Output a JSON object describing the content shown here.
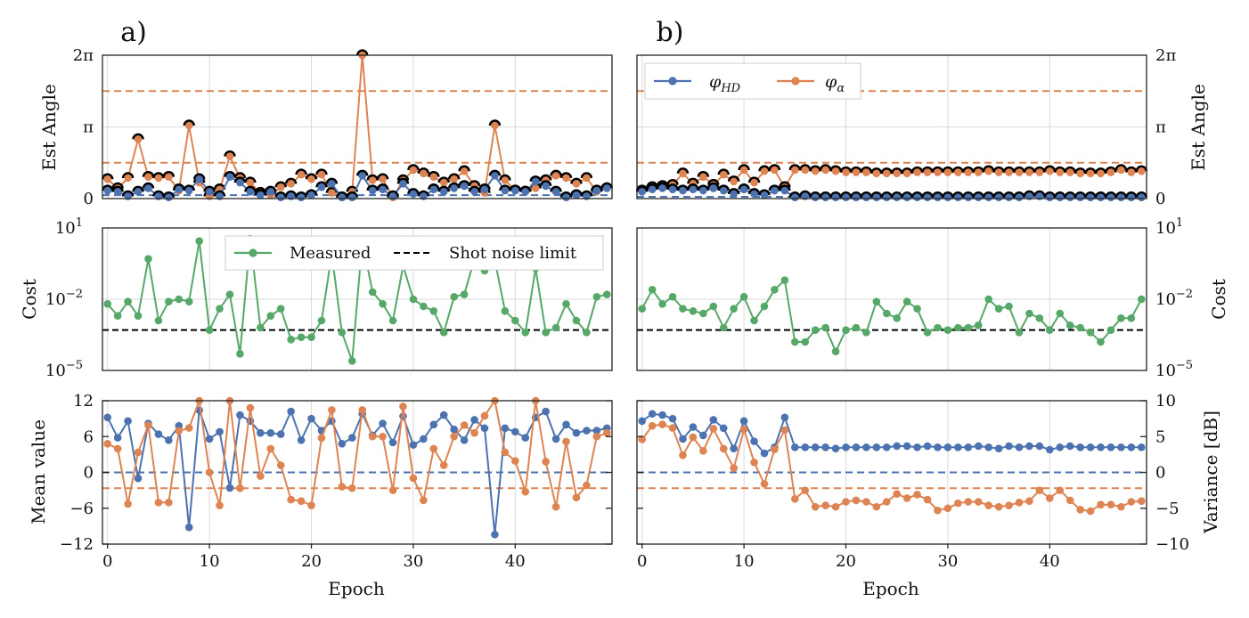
{
  "colors": {
    "hd": "#4C72B0",
    "alpha": "#DD8452",
    "measured": "#55A868",
    "limit": "#000000",
    "grid": "#d9d9d9"
  },
  "labels": {
    "panel_a": "a)",
    "panel_b": "b)",
    "est_angle": "Est Angle",
    "cost": "Cost",
    "mean_value": "Mean value",
    "variance": "Variance [dB]",
    "epoch": "Epoch",
    "legend_hd": "φ_HD",
    "legend_alpha": "φ_α",
    "legend_measured": "Measured",
    "legend_limit": "Shot noise limit"
  },
  "chart_data": [
    {
      "id": "a-angle",
      "type": "line",
      "title": "a)",
      "xlabel": "",
      "ylabel": "Est Angle",
      "xlim": [
        -0.5,
        49.5
      ],
      "ylim": [
        0,
        6.2832
      ],
      "yticks": [
        "0",
        "π",
        "2π"
      ],
      "hlines": [
        {
          "y": 1.5708,
          "series": "φ_α"
        },
        {
          "y": 4.7124,
          "series": "φ_α"
        },
        {
          "y": 0.15,
          "series": "φ_HD"
        }
      ],
      "series": [
        {
          "name": "φ_HD",
          "values": [
            0.35,
            0.3,
            0.1,
            0.3,
            0.45,
            0.1,
            0.05,
            0.4,
            0.35,
            0.85,
            0.3,
            0.1,
            0.95,
            0.7,
            0.3,
            0.15,
            0.3,
            0.05,
            0.1,
            0.05,
            0.15,
            0.5,
            0.65,
            0.05,
            0.05,
            1.0,
            0.35,
            0.4,
            0.1,
            0.65,
            0.2,
            0.1,
            0.4,
            0.3,
            0.45,
            0.55,
            0.3,
            0.4,
            1.0,
            0.35,
            0.35,
            0.3,
            0.75,
            0.55,
            0.3,
            0.05,
            0.15,
            0.1,
            0.35,
            0.45
          ]
        },
        {
          "name": "φ_α",
          "values": [
            0.85,
            0.45,
            0.9,
            2.6,
            0.95,
            0.9,
            0.95,
            0.35,
            3.2,
            0.7,
            0.1,
            0.4,
            1.85,
            0.9,
            0.7,
            0.25,
            0.15,
            0.5,
            0.65,
            1.05,
            0.85,
            1.05,
            0.25,
            0.05,
            0.3,
            6.28,
            0.8,
            0.85,
            0.05,
            0.8,
            1.25,
            1.1,
            0.95,
            0.7,
            0.85,
            1.2,
            0.55,
            0.25,
            3.2,
            0.8,
            0.35,
            0.3,
            0.45,
            0.8,
            1.0,
            0.9,
            0.65,
            0.9,
            0.3,
            0.45
          ]
        }
      ]
    },
    {
      "id": "b-angle",
      "type": "line",
      "title": "b)",
      "xlabel": "",
      "ylabel": "Est Angle",
      "xlim": [
        -0.5,
        49.5
      ],
      "ylim": [
        0,
        6.2832
      ],
      "yticks": [
        "0",
        "π",
        "2π"
      ],
      "legend": [
        "φ_HD",
        "φ_α"
      ],
      "hlines": [
        {
          "y": 1.5708,
          "series": "φ_α"
        },
        {
          "y": 4.7124,
          "series": "φ_α"
        },
        {
          "y": 0.08,
          "series": "φ_HD"
        }
      ],
      "series": [
        {
          "name": "φ_HD",
          "values": [
            0.3,
            0.4,
            0.45,
            0.4,
            0.35,
            0.4,
            0.35,
            0.45,
            0.35,
            0.2,
            0.4,
            0.2,
            0.15,
            0.35,
            0.35,
            0.05,
            0.1,
            0.05,
            0.05,
            0.05,
            0.05,
            0.05,
            0.05,
            0.05,
            0.05,
            0.05,
            0.05,
            0.05,
            0.05,
            0.05,
            0.05,
            0.05,
            0.05,
            0.05,
            0.05,
            0.05,
            0.05,
            0.05,
            0.1,
            0.1,
            0.05,
            0.05,
            0.05,
            0.05,
            0.05,
            0.05,
            0.05,
            0.05,
            0.05,
            0.05
          ]
        },
        {
          "name": "φ_α",
          "values": [
            0.35,
            0.5,
            0.55,
            0.6,
            1.1,
            0.65,
            0.95,
            0.6,
            1.05,
            0.75,
            1.25,
            0.7,
            1.2,
            1.25,
            0.5,
            1.25,
            1.25,
            1.2,
            1.25,
            1.2,
            1.15,
            1.15,
            1.15,
            1.1,
            1.1,
            1.1,
            1.1,
            1.15,
            1.15,
            1.15,
            1.15,
            1.15,
            1.15,
            1.15,
            1.2,
            1.15,
            1.15,
            1.15,
            1.15,
            1.15,
            1.2,
            1.15,
            1.15,
            1.1,
            1.1,
            1.1,
            1.15,
            1.25,
            1.15,
            1.2
          ]
        }
      ]
    },
    {
      "id": "a-cost",
      "type": "line",
      "xlabel": "",
      "ylabel": "Cost",
      "yscale": "log",
      "ylim_log10": [
        -5,
        1
      ],
      "ytick_exponents": [
        1,
        -2,
        -5
      ],
      "shot_noise_limit_log10": -3.3,
      "legend": [
        "Measured",
        "Shot noise limit"
      ],
      "series": [
        {
          "name": "Measured",
          "log10_values": [
            -2.2,
            -2.7,
            -2.1,
            -2.7,
            -0.3,
            -2.9,
            -2.1,
            -2.0,
            -2.1,
            0.45,
            -3.3,
            -2.4,
            -1.8,
            -4.3,
            0.55,
            -3.2,
            -2.7,
            -2.4,
            -3.7,
            -3.6,
            -3.6,
            -2.9,
            -0.1,
            -3.4,
            -4.6,
            0.45,
            -1.7,
            -2.2,
            -2.9,
            -0.6,
            -2.0,
            -2.3,
            -2.5,
            -3.4,
            -1.9,
            -1.8,
            -0.3,
            -0.8,
            -0.35,
            -2.5,
            -2.9,
            -3.4,
            -0.7,
            -3.4,
            -3.2,
            -2.2,
            -2.9,
            -3.4,
            -1.9,
            -1.8
          ]
        },
        {
          "name": "Shot noise limit",
          "log10_values": [
            -3.3
          ]
        }
      ]
    },
    {
      "id": "b-cost",
      "type": "line",
      "xlabel": "",
      "ylabel": "Cost",
      "yscale": "log",
      "ylim_log10": [
        -5,
        1
      ],
      "ytick_exponents": [
        1,
        -2,
        -5
      ],
      "shot_noise_limit_log10": -3.3,
      "series": [
        {
          "name": "Measured",
          "log10_values": [
            -2.4,
            -1.6,
            -2.2,
            -1.9,
            -2.4,
            -2.5,
            -2.6,
            -2.3,
            -3.2,
            -2.4,
            -1.9,
            -2.9,
            -2.3,
            -1.6,
            -1.2,
            -3.8,
            -3.8,
            -3.3,
            -3.2,
            -4.2,
            -3.3,
            -3.2,
            -3.4,
            -2.1,
            -2.6,
            -2.8,
            -2.1,
            -2.4,
            -3.4,
            -3.2,
            -3.3,
            -3.2,
            -3.2,
            -3.1,
            -2.0,
            -2.4,
            -2.3,
            -3.4,
            -2.6,
            -2.8,
            -3.3,
            -2.6,
            -3.1,
            -3.2,
            -3.4,
            -3.8,
            -3.3,
            -2.8,
            -2.8,
            -2.0
          ]
        },
        {
          "name": "Shot noise limit",
          "log10_values": [
            -3.3
          ]
        }
      ]
    },
    {
      "id": "a-stats",
      "type": "line",
      "xlabel": "Epoch",
      "ylabel": "Mean value",
      "ylabel_right": "Variance [dB]",
      "ylim_left": [
        -12,
        12
      ],
      "ylim_right": [
        -10,
        10
      ],
      "yticks_left": [
        12,
        6,
        0,
        -6,
        -12
      ],
      "yticks_right": [],
      "xticks": [
        0,
        10,
        20,
        30,
        40
      ],
      "hlines": [
        {
          "y": 0,
          "axis": "left",
          "series": "Mean value"
        },
        {
          "y": -2.2,
          "axis": "right",
          "series": "Variance [dB]"
        }
      ],
      "series": [
        {
          "name": "Mean value",
          "axis": "left",
          "values": [
            9.2,
            5.8,
            8.6,
            -1.0,
            8.2,
            6.4,
            5.4,
            7.8,
            -9.2,
            10.4,
            5.6,
            6.8,
            -2.6,
            9.6,
            8.6,
            6.6,
            6.6,
            6.4,
            10.2,
            5.4,
            9.0,
            7.0,
            8.6,
            4.8,
            5.8,
            9.8,
            6.2,
            8.2,
            5.0,
            9.4,
            4.6,
            5.6,
            8.0,
            9.6,
            7.2,
            5.4,
            8.8,
            7.4,
            -10.4,
            7.4,
            6.8,
            5.8,
            9.2,
            10.2,
            5.6,
            8.0,
            6.6,
            7.0,
            7.0,
            7.4
          ]
        },
        {
          "name": "Variance [dB]",
          "axis": "right",
          "values": [
            4.0,
            3.3,
            -4.4,
            2.8,
            6.6,
            -4.2,
            -4.2,
            5.8,
            6.2,
            10.0,
            0.0,
            -4.6,
            10.0,
            -2.2,
            9.0,
            -0.5,
            3.3,
            1.0,
            -3.8,
            -4.0,
            -4.6,
            4.8,
            8.7,
            -2.0,
            -2.2,
            8.7,
            5.0,
            5.0,
            -2.5,
            9.2,
            -0.8,
            -3.9,
            3.3,
            1.0,
            5.0,
            6.6,
            5.5,
            7.9,
            10.0,
            2.8,
            1.6,
            -2.7,
            10.0,
            1.5,
            -4.8,
            4.3,
            -3.5,
            -1.8,
            5.0,
            5.5
          ]
        }
      ]
    },
    {
      "id": "b-stats",
      "type": "line",
      "xlabel": "Epoch",
      "ylabel": "Mean value",
      "ylabel_right": "Variance [dB]",
      "ylim_left": [
        -12,
        12
      ],
      "ylim_right": [
        -10,
        10
      ],
      "yticks_left": [],
      "yticks_right": [
        10,
        5,
        0,
        -5,
        -10
      ],
      "xticks": [
        0,
        10,
        20,
        30,
        40
      ],
      "hlines": [
        {
          "y": 0,
          "axis": "left",
          "series": "Mean value"
        },
        {
          "y": -2.2,
          "axis": "right",
          "series": "Variance [dB]"
        }
      ],
      "series": [
        {
          "name": "Mean value",
          "axis": "left",
          "values": [
            8.6,
            9.8,
            9.6,
            9.0,
            5.6,
            7.6,
            6.2,
            8.8,
            7.4,
            4.0,
            8.6,
            5.2,
            3.2,
            4.2,
            9.2,
            4.2,
            4.2,
            4.2,
            4.2,
            4.0,
            4.2,
            4.2,
            4.2,
            4.2,
            4.2,
            4.4,
            4.4,
            4.2,
            4.4,
            4.2,
            4.2,
            4.2,
            4.2,
            4.4,
            4.2,
            4.0,
            4.4,
            4.2,
            4.4,
            4.4,
            3.8,
            4.2,
            4.4,
            4.2,
            4.2,
            4.2,
            4.2,
            4.2,
            4.2,
            4.2
          ]
        },
        {
          "name": "Variance [dB]",
          "axis": "right",
          "values": [
            4.6,
            6.5,
            6.7,
            6.2,
            2.4,
            4.9,
            3.0,
            6.1,
            3.3,
            0.6,
            6.0,
            1.4,
            -1.6,
            3.2,
            5.9,
            -3.7,
            -2.5,
            -4.8,
            -4.6,
            -4.8,
            -4.1,
            -3.9,
            -4.1,
            -4.8,
            -4.1,
            -3.0,
            -3.6,
            -3.1,
            -3.8,
            -5.3,
            -5.0,
            -4.3,
            -4.1,
            -4.1,
            -4.6,
            -4.8,
            -4.6,
            -4.2,
            -4.0,
            -2.5,
            -3.6,
            -2.5,
            -3.9,
            -5.2,
            -5.4,
            -4.5,
            -4.5,
            -4.8,
            -4.1,
            -4.0
          ]
        }
      ]
    }
  ]
}
